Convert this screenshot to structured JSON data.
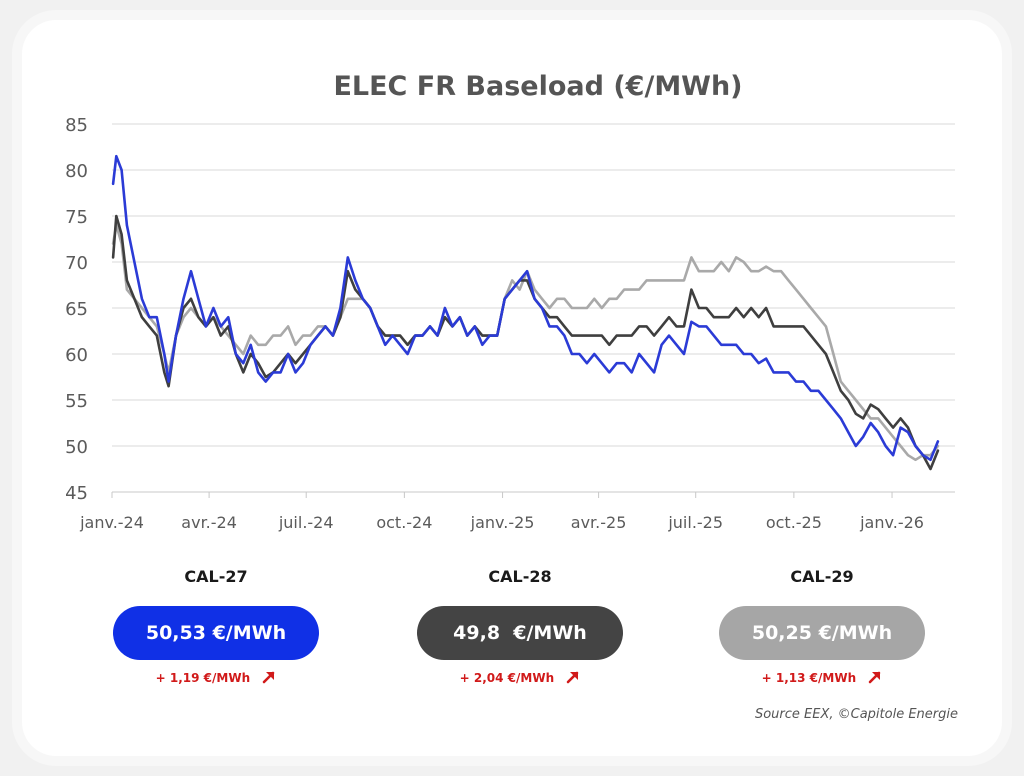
{
  "chart_data": {
    "type": "line",
    "title": "ELEC FR Baseload (€/MWh)",
    "xlabel": "",
    "ylabel": "",
    "ylim": [
      45,
      85
    ],
    "yticks": [
      45,
      50,
      55,
      60,
      65,
      70,
      75,
      80,
      85
    ],
    "x_tick_labels": [
      "janv.-24",
      "avr.-24",
      "juil.-24",
      "oct.-24",
      "janv.-25",
      "avr.-25",
      "juil.-25",
      "oct.-25",
      "janv.-26"
    ],
    "grid": true,
    "legend": "none",
    "series": [
      {
        "color": "#2b3bd6",
        "x": [
          "2024-01-02",
          "2024-01-05",
          "2024-01-10",
          "2024-01-15",
          "2024-01-22",
          "2024-01-29",
          "2024-02-05",
          "2024-02-12",
          "2024-02-19",
          "2024-02-23",
          "2024-03-01",
          "2024-03-08",
          "2024-03-15",
          "2024-03-22",
          "2024-03-29",
          "2024-04-05",
          "2024-04-12",
          "2024-04-19",
          "2024-04-26",
          "2024-05-03",
          "2024-05-10",
          "2024-05-17",
          "2024-05-24",
          "2024-05-31",
          "2024-06-07",
          "2024-06-14",
          "2024-06-21",
          "2024-06-28",
          "2024-07-05",
          "2024-07-12",
          "2024-07-19",
          "2024-07-26",
          "2024-08-02",
          "2024-08-09",
          "2024-08-16",
          "2024-08-23",
          "2024-08-30",
          "2024-09-06",
          "2024-09-13",
          "2024-09-20",
          "2024-09-27",
          "2024-10-04",
          "2024-10-11",
          "2024-10-18",
          "2024-10-25",
          "2024-11-01",
          "2024-11-08",
          "2024-11-15",
          "2024-11-22",
          "2024-11-29",
          "2024-12-06",
          "2024-12-13",
          "2024-12-20",
          "2024-12-27",
          "2025-01-03",
          "2025-01-10",
          "2025-01-17",
          "2025-01-24",
          "2025-01-31",
          "2025-02-07",
          "2025-02-14",
          "2025-02-21",
          "2025-02-28",
          "2025-03-07",
          "2025-03-14",
          "2025-03-21",
          "2025-03-28",
          "2025-04-04",
          "2025-04-11",
          "2025-04-18",
          "2025-04-25",
          "2025-05-02",
          "2025-05-09",
          "2025-05-16",
          "2025-05-23",
          "2025-05-30",
          "2025-06-06",
          "2025-06-13",
          "2025-06-20",
          "2025-06-27",
          "2025-07-04",
          "2025-07-11",
          "2025-07-18",
          "2025-07-25",
          "2025-08-01",
          "2025-08-08",
          "2025-08-15",
          "2025-08-22",
          "2025-08-29",
          "2025-09-05",
          "2025-09-12",
          "2025-09-19",
          "2025-09-26",
          "2025-10-03",
          "2025-10-10",
          "2025-10-17",
          "2025-10-24",
          "2025-10-31",
          "2025-11-07",
          "2025-11-14",
          "2025-11-21",
          "2025-11-28",
          "2025-12-05",
          "2025-12-12",
          "2025-12-19",
          "2025-12-26",
          "2026-01-02",
          "2026-01-09",
          "2026-01-16",
          "2026-01-23",
          "2026-01-30",
          "2026-02-06",
          "2026-02-13"
        ],
        "values": [
          78.5,
          81.5,
          80,
          74,
          70,
          66,
          64,
          64,
          60,
          57,
          62,
          66,
          69,
          66,
          63,
          65,
          63,
          64,
          60,
          59,
          61,
          58,
          57,
          58,
          58,
          60,
          58,
          59,
          61,
          62,
          63,
          62,
          65,
          70.5,
          68,
          66,
          65,
          63,
          61,
          62,
          61,
          60,
          62,
          62,
          63,
          62,
          65,
          63,
          64,
          62,
          63,
          61,
          62,
          62,
          66,
          67,
          68,
          69,
          66,
          65,
          63,
          63,
          62,
          60,
          60,
          59,
          60,
          59,
          58,
          59,
          59,
          58,
          60,
          59,
          58,
          61,
          62,
          61,
          60,
          63.5,
          63,
          63,
          62,
          61,
          61,
          61,
          60,
          60,
          59,
          59.5,
          58,
          58,
          58,
          57,
          57,
          56,
          56,
          55,
          54,
          53,
          51.5,
          50,
          51,
          52.5,
          51.5,
          50,
          49,
          52,
          51.5,
          50,
          49,
          48.5,
          50.5
        ]
      },
      {
        "color": "#3f3f3f",
        "x": [
          "2024-01-02",
          "2024-01-05",
          "2024-01-10",
          "2024-01-15",
          "2024-01-22",
          "2024-01-29",
          "2024-02-05",
          "2024-02-12",
          "2024-02-19",
          "2024-02-23",
          "2024-03-01",
          "2024-03-08",
          "2024-03-15",
          "2024-03-22",
          "2024-03-29",
          "2024-04-05",
          "2024-04-12",
          "2024-04-19",
          "2024-04-26",
          "2024-05-03",
          "2024-05-10",
          "2024-05-17",
          "2024-05-24",
          "2024-05-31",
          "2024-06-07",
          "2024-06-14",
          "2024-06-21",
          "2024-06-28",
          "2024-07-05",
          "2024-07-12",
          "2024-07-19",
          "2024-07-26",
          "2024-08-02",
          "2024-08-09",
          "2024-08-16",
          "2024-08-23",
          "2024-08-30",
          "2024-09-06",
          "2024-09-13",
          "2024-09-20",
          "2024-09-27",
          "2024-10-04",
          "2024-10-11",
          "2024-10-18",
          "2024-10-25",
          "2024-11-01",
          "2024-11-08",
          "2024-11-15",
          "2024-11-22",
          "2024-11-29",
          "2024-12-06",
          "2024-12-13",
          "2024-12-20",
          "2024-12-27",
          "2025-01-03",
          "2025-01-10",
          "2025-01-17",
          "2025-01-24",
          "2025-01-31",
          "2025-02-07",
          "2025-02-14",
          "2025-02-21",
          "2025-02-28",
          "2025-03-07",
          "2025-03-14",
          "2025-03-21",
          "2025-03-28",
          "2025-04-04",
          "2025-04-11",
          "2025-04-18",
          "2025-04-25",
          "2025-05-02",
          "2025-05-09",
          "2025-05-16",
          "2025-05-23",
          "2025-05-30",
          "2025-06-06",
          "2025-06-13",
          "2025-06-20",
          "2025-06-27",
          "2025-07-04",
          "2025-07-11",
          "2025-07-18",
          "2025-07-25",
          "2025-08-01",
          "2025-08-08",
          "2025-08-15",
          "2025-08-22",
          "2025-08-29",
          "2025-09-05",
          "2025-09-12",
          "2025-09-19",
          "2025-09-26",
          "2025-10-03",
          "2025-10-10",
          "2025-10-17",
          "2025-10-24",
          "2025-10-31",
          "2025-11-07",
          "2025-11-14",
          "2025-11-21",
          "2025-11-28",
          "2025-12-05",
          "2025-12-12",
          "2025-12-19",
          "2025-12-26",
          "2026-01-02",
          "2026-01-09",
          "2026-01-16",
          "2026-01-23",
          "2026-01-30",
          "2026-02-06",
          "2026-02-13"
        ],
        "values": [
          70.5,
          75,
          73,
          68,
          66,
          64,
          63,
          62,
          58,
          56.5,
          62,
          65,
          66,
          64,
          63,
          64,
          62,
          63,
          60,
          58,
          60,
          59,
          57.5,
          58,
          59,
          60,
          59,
          60,
          61,
          62,
          63,
          62,
          64,
          69,
          67,
          66,
          65,
          63,
          62,
          62,
          62,
          61,
          62,
          62,
          63,
          62,
          64,
          63,
          64,
          62,
          63,
          62,
          62,
          62,
          66,
          67,
          68,
          68,
          66,
          65,
          64,
          64,
          63,
          62,
          62,
          62,
          62,
          62,
          61,
          62,
          62,
          62,
          63,
          63,
          62,
          63,
          64,
          63,
          63,
          67,
          65,
          65,
          64,
          64,
          64,
          65,
          64,
          65,
          64,
          65,
          63,
          63,
          63,
          63,
          63,
          62,
          61,
          60,
          58,
          56,
          55,
          53.5,
          53,
          54.5,
          54,
          53,
          52,
          53,
          52,
          50,
          49,
          47.5,
          49.5
        ]
      },
      {
        "color": "#a9a9a9",
        "x": [
          "2024-01-02",
          "2024-01-05",
          "2024-01-10",
          "2024-01-15",
          "2024-01-22",
          "2024-01-29",
          "2024-02-05",
          "2024-02-12",
          "2024-02-19",
          "2024-02-23",
          "2024-03-01",
          "2024-03-08",
          "2024-03-15",
          "2024-03-22",
          "2024-03-29",
          "2024-04-05",
          "2024-04-12",
          "2024-04-19",
          "2024-04-26",
          "2024-05-03",
          "2024-05-10",
          "2024-05-17",
          "2024-05-24",
          "2024-05-31",
          "2024-06-07",
          "2024-06-14",
          "2024-06-21",
          "2024-06-28",
          "2024-07-05",
          "2024-07-12",
          "2024-07-19",
          "2024-07-26",
          "2024-08-02",
          "2024-08-09",
          "2024-08-16",
          "2024-08-23",
          "2024-08-30",
          "2024-09-06",
          "2024-09-13",
          "2024-09-20",
          "2024-09-27",
          "2024-10-04",
          "2024-10-11",
          "2024-10-18",
          "2024-10-25",
          "2024-11-01",
          "2024-11-08",
          "2024-11-15",
          "2024-11-22",
          "2024-11-29",
          "2024-12-06",
          "2024-12-13",
          "2024-12-20",
          "2024-12-27",
          "2025-01-03",
          "2025-01-10",
          "2025-01-17",
          "2025-01-24",
          "2025-01-31",
          "2025-02-07",
          "2025-02-14",
          "2025-02-21",
          "2025-02-28",
          "2025-03-07",
          "2025-03-14",
          "2025-03-21",
          "2025-03-28",
          "2025-04-04",
          "2025-04-11",
          "2025-04-18",
          "2025-04-25",
          "2025-05-02",
          "2025-05-09",
          "2025-05-16",
          "2025-05-23",
          "2025-05-30",
          "2025-06-06",
          "2025-06-13",
          "2025-06-20",
          "2025-06-27",
          "2025-07-04",
          "2025-07-11",
          "2025-07-18",
          "2025-07-25",
          "2025-08-01",
          "2025-08-08",
          "2025-08-15",
          "2025-08-22",
          "2025-08-29",
          "2025-09-05",
          "2025-09-12",
          "2025-09-19",
          "2025-09-26",
          "2025-10-03",
          "2025-10-10",
          "2025-10-17",
          "2025-10-24",
          "2025-10-31",
          "2025-11-07",
          "2025-11-14",
          "2025-11-21",
          "2025-11-28",
          "2025-12-05",
          "2025-12-12",
          "2025-12-19",
          "2025-12-26",
          "2026-01-02",
          "2026-01-09",
          "2026-01-16",
          "2026-01-23",
          "2026-01-30",
          "2026-02-06",
          "2026-02-13"
        ],
        "values": [
          72,
          74,
          72,
          67,
          66,
          65,
          64,
          63,
          60,
          58,
          62,
          64,
          65,
          64,
          63,
          64,
          63,
          62,
          61,
          60,
          62,
          61,
          61,
          62,
          62,
          63,
          61,
          62,
          62,
          63,
          63,
          62,
          64,
          66,
          66,
          66,
          65,
          63,
          62,
          62,
          62,
          61,
          62,
          62,
          63,
          62,
          64,
          63,
          64,
          62,
          63,
          62,
          62,
          62,
          66,
          68,
          67,
          69,
          67,
          66,
          65,
          66,
          66,
          65,
          65,
          65,
          66,
          65,
          66,
          66,
          67,
          67,
          67,
          68,
          68,
          68,
          68,
          68,
          68,
          70.5,
          69,
          69,
          69,
          70,
          69,
          70.5,
          70,
          69,
          69,
          69.5,
          69,
          69,
          68,
          67,
          66,
          65,
          64,
          63,
          60,
          57,
          56,
          55,
          54,
          53,
          53,
          52,
          51,
          50,
          49,
          48.5,
          49,
          49,
          50
        ]
      }
    ]
  },
  "contracts": [
    {
      "label": "CAL-27",
      "price": "50,53 €/MWh",
      "change": "+ 1,19 €/MWh",
      "color": "#1030e6"
    },
    {
      "label": "CAL-28",
      "price": "49,8  €/MWh",
      "change": "+ 2,04 €/MWh",
      "color": "#444444"
    },
    {
      "label": "CAL-29",
      "price": "50,25 €/MWh",
      "change": "+ 1,13 €/MWh",
      "color": "#a6a6a6"
    }
  ],
  "source": "Source EEX, ©Capitole Energie",
  "colors": {
    "change_red": "#d11a1a",
    "card_bg": "#ffffff",
    "page_bg": "#f1f1f1"
  },
  "icons": {
    "trend": "arrow-up-right-icon"
  }
}
